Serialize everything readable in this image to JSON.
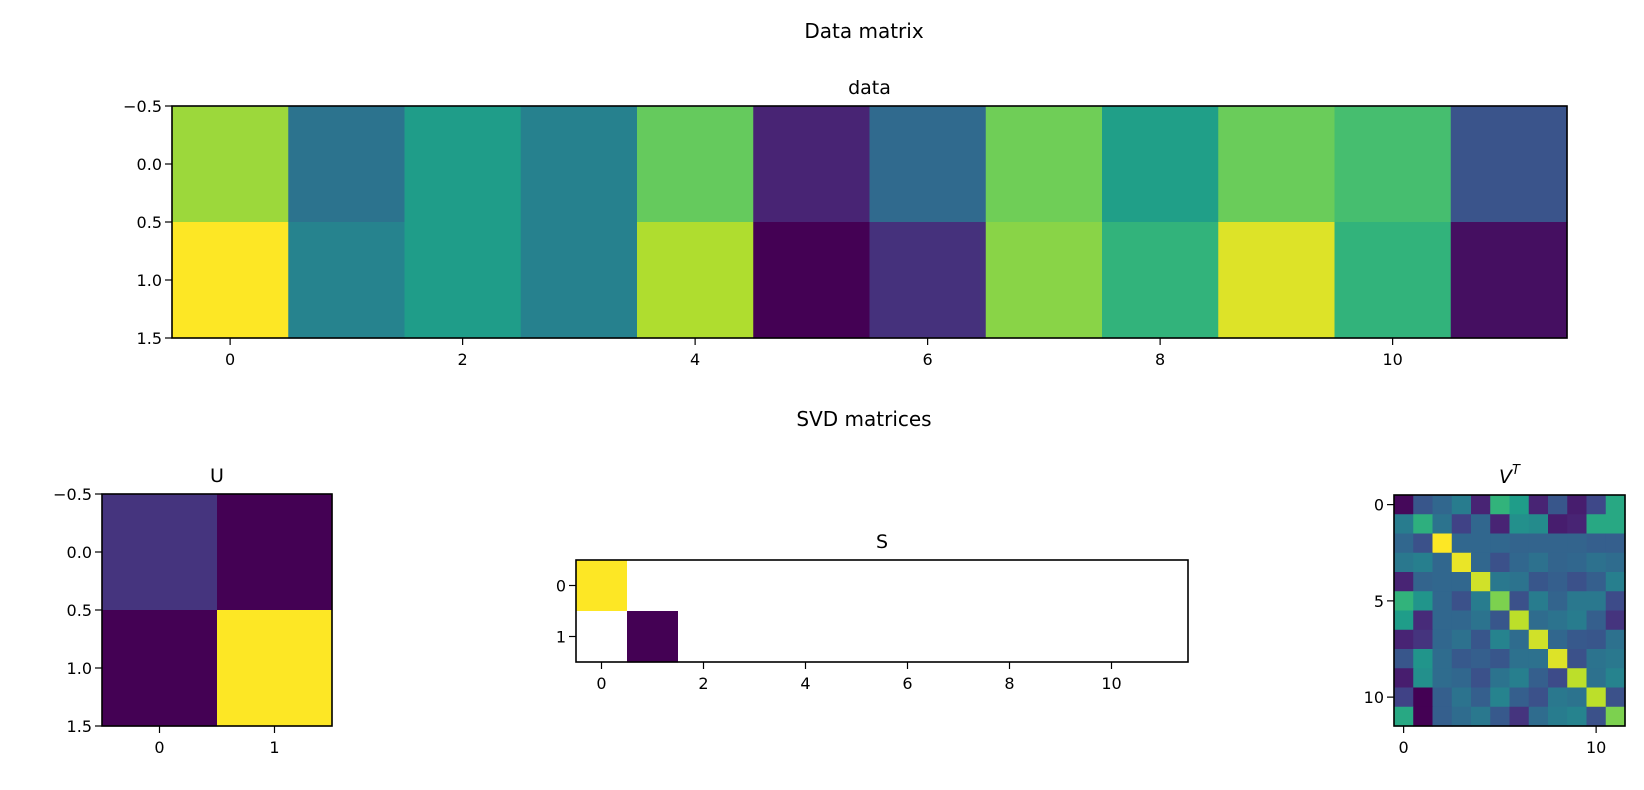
{
  "figure": {
    "suptitle_top": "Data matrix",
    "suptitle_bottom": "SVD matrices"
  },
  "colormap": {
    "name": "viridis",
    "stops": [
      "#440154",
      "#482878",
      "#3e4989",
      "#31688e",
      "#26828e",
      "#1f9e89",
      "#35b779",
      "#6ece58",
      "#b5de2b",
      "#fde725"
    ],
    "nan_color": "#ffffff"
  },
  "chart_data": [
    {
      "id": "data",
      "type": "heatmap",
      "title": "data",
      "rows": 2,
      "cols": 12,
      "xlim": [
        -0.5,
        11.5
      ],
      "ylim": [
        1.5,
        -0.5
      ],
      "xticks": [
        0,
        2,
        4,
        6,
        8,
        10
      ],
      "xtick_labels": [
        "0",
        "2",
        "4",
        "6",
        "8",
        "10"
      ],
      "yticks": [
        -0.5,
        0.0,
        0.5,
        1.0,
        1.5
      ],
      "ytick_labels": [
        "−0.5",
        "0.0",
        "0.5",
        "1.0",
        "1.5"
      ],
      "values": [
        [
          0.85,
          0.38,
          0.55,
          0.44,
          0.76,
          0.1,
          0.34,
          0.78,
          0.56,
          0.77,
          0.7,
          0.26
        ],
        [
          1.0,
          0.45,
          0.55,
          0.44,
          0.88,
          0.0,
          0.14,
          0.82,
          0.65,
          0.95,
          0.65,
          0.04
        ]
      ]
    },
    {
      "id": "U",
      "type": "heatmap",
      "title": "U",
      "rows": 2,
      "cols": 2,
      "xlim": [
        -0.5,
        1.5
      ],
      "ylim": [
        1.5,
        -0.5
      ],
      "xticks": [
        0,
        1
      ],
      "xtick_labels": [
        "0",
        "1"
      ],
      "yticks": [
        -0.5,
        0.0,
        0.5,
        1.0,
        1.5
      ],
      "ytick_labels": [
        "−0.5",
        "0.0",
        "0.5",
        "1.0",
        "1.5"
      ],
      "values": [
        [
          0.15,
          0.0
        ],
        [
          0.0,
          1.0
        ]
      ]
    },
    {
      "id": "S",
      "type": "heatmap",
      "title": "S",
      "rows": 2,
      "cols": 12,
      "xlim": [
        -0.5,
        11.5
      ],
      "ylim": [
        1.5,
        -0.5
      ],
      "xticks": [
        0,
        2,
        4,
        6,
        8,
        10
      ],
      "xtick_labels": [
        "0",
        "2",
        "4",
        "6",
        "8",
        "10"
      ],
      "yticks": [
        0,
        1
      ],
      "ytick_labels": [
        "0",
        "1"
      ],
      "values": [
        [
          1.0,
          null,
          null,
          null,
          null,
          null,
          null,
          null,
          null,
          null,
          null,
          null
        ],
        [
          null,
          0.0,
          null,
          null,
          null,
          null,
          null,
          null,
          null,
          null,
          null,
          null
        ]
      ]
    },
    {
      "id": "VT",
      "type": "heatmap",
      "title": "V",
      "title_superscript": "T",
      "rows": 12,
      "cols": 12,
      "xlim": [
        -0.5,
        11.5
      ],
      "ylim": [
        11.5,
        -0.5
      ],
      "xticks": [
        0,
        10
      ],
      "xtick_labels": [
        "0",
        "10"
      ],
      "yticks": [
        0,
        5,
        10
      ],
      "ytick_labels": [
        "0",
        "5",
        "10"
      ],
      "values": [
        [
          0.02,
          0.27,
          0.33,
          0.42,
          0.1,
          0.65,
          0.55,
          0.1,
          0.27,
          0.08,
          0.22,
          0.6
        ],
        [
          0.42,
          0.63,
          0.38,
          0.2,
          0.33,
          0.1,
          0.5,
          0.48,
          0.08,
          0.1,
          0.6,
          0.6
        ],
        [
          0.33,
          0.25,
          1.0,
          0.33,
          0.33,
          0.33,
          0.32,
          0.32,
          0.32,
          0.32,
          0.3,
          0.3
        ],
        [
          0.4,
          0.43,
          0.33,
          0.97,
          0.33,
          0.25,
          0.33,
          0.37,
          0.32,
          0.33,
          0.37,
          0.35
        ],
        [
          0.1,
          0.32,
          0.33,
          0.33,
          0.93,
          0.4,
          0.38,
          0.27,
          0.3,
          0.25,
          0.3,
          0.43
        ],
        [
          0.65,
          0.52,
          0.33,
          0.25,
          0.42,
          0.8,
          0.25,
          0.42,
          0.32,
          0.4,
          0.4,
          0.23
        ],
        [
          0.55,
          0.12,
          0.33,
          0.33,
          0.38,
          0.27,
          0.9,
          0.35,
          0.38,
          0.42,
          0.3,
          0.15
        ],
        [
          0.1,
          0.15,
          0.33,
          0.37,
          0.27,
          0.45,
          0.35,
          0.93,
          0.33,
          0.28,
          0.27,
          0.37
        ],
        [
          0.27,
          0.52,
          0.35,
          0.28,
          0.3,
          0.27,
          0.37,
          0.37,
          0.95,
          0.25,
          0.38,
          0.4
        ],
        [
          0.08,
          0.5,
          0.35,
          0.33,
          0.25,
          0.38,
          0.43,
          0.3,
          0.23,
          0.9,
          0.37,
          0.45
        ],
        [
          0.2,
          0.0,
          0.3,
          0.38,
          0.3,
          0.45,
          0.3,
          0.25,
          0.4,
          0.38,
          0.9,
          0.25
        ],
        [
          0.6,
          0.0,
          0.3,
          0.35,
          0.4,
          0.28,
          0.15,
          0.35,
          0.42,
          0.45,
          0.25,
          0.8
        ]
      ]
    }
  ]
}
